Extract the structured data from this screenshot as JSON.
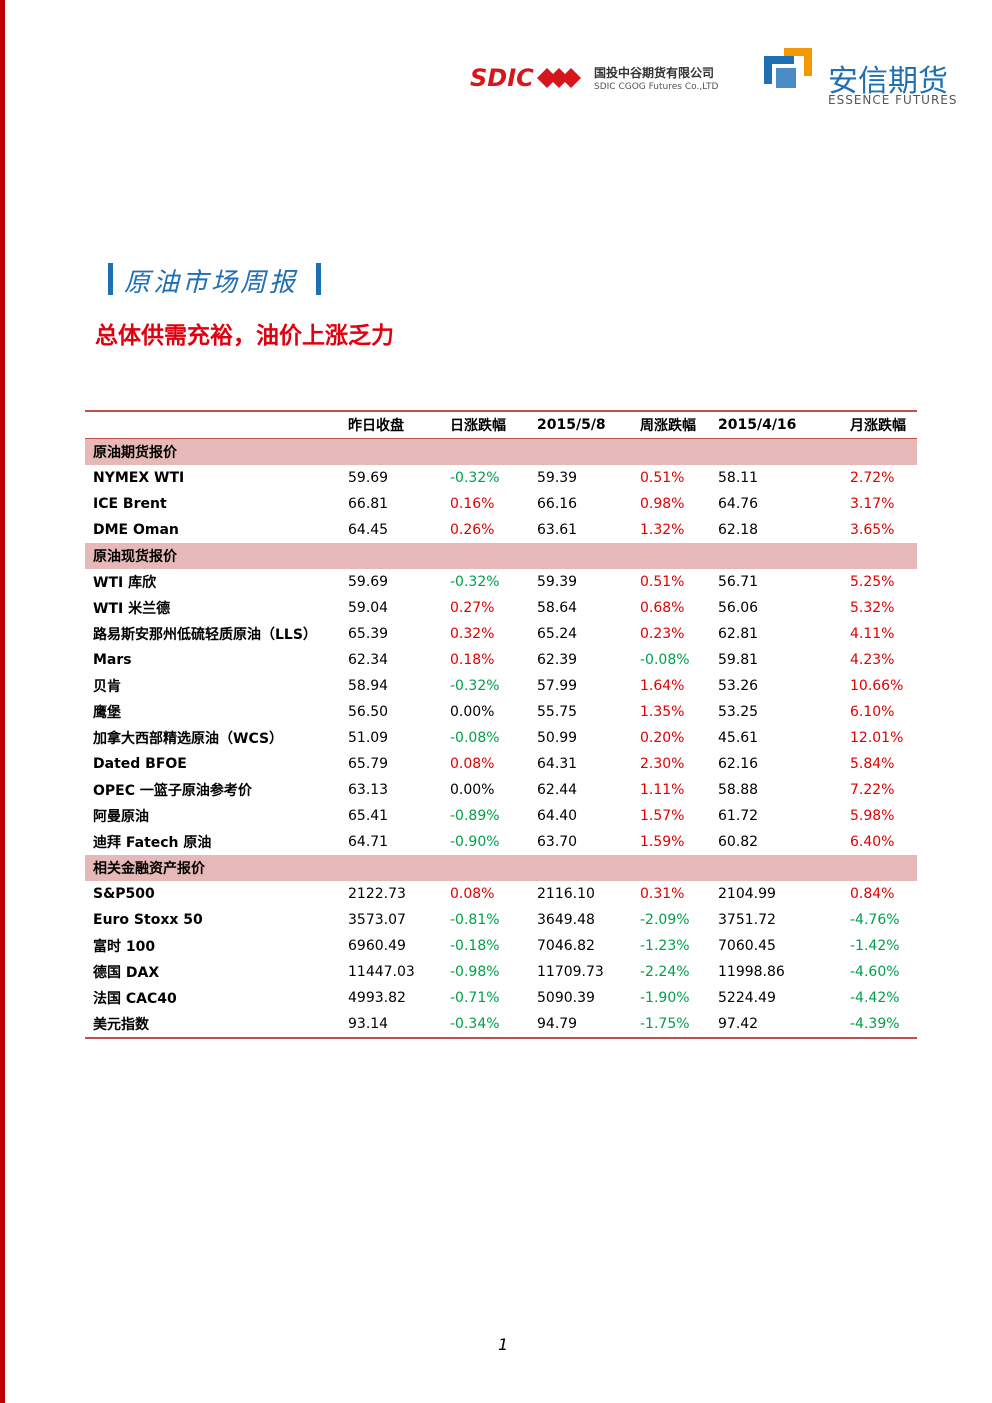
{
  "header": {
    "sdic_logo": "SDIC",
    "company_cn": "国投中谷期货有限公司",
    "company_en": "SDIC CGOG Futures Co.,LTD",
    "brand_cn": "安信期货",
    "brand_en": "ESSENCE FUTURES"
  },
  "title": "原油市场周报",
  "subtitle": "总体供需充裕，油价上涨乏力",
  "table": {
    "columns": [
      "昨日收盘",
      "日涨跌幅",
      "2015/5/8",
      "周涨跌幅",
      "2015/4/16",
      "月涨跌幅"
    ],
    "sections": [
      {
        "title": "原油期货报价",
        "rows": [
          [
            "NYMEX WTI",
            "59.69",
            "-0.32%",
            "59.39",
            "0.51%",
            "58.11",
            "2.72%"
          ],
          [
            "ICE Brent",
            "66.81",
            "0.16%",
            "66.16",
            "0.98%",
            "64.76",
            "3.17%"
          ],
          [
            "DME Oman",
            "64.45",
            "0.26%",
            "63.61",
            "1.32%",
            "62.18",
            "3.65%"
          ]
        ]
      },
      {
        "title": "原油现货报价",
        "rows": [
          [
            "WTI 库欣",
            "59.69",
            "-0.32%",
            "59.39",
            "0.51%",
            "56.71",
            "5.25%"
          ],
          [
            "WTI 米兰德",
            "59.04",
            "0.27%",
            "58.64",
            "0.68%",
            "56.06",
            "5.32%"
          ],
          [
            "路易斯安那州低硫轻质原油（LLS）",
            "65.39",
            "0.32%",
            "65.24",
            "0.23%",
            "62.81",
            "4.11%"
          ],
          [
            "Mars",
            "62.34",
            "0.18%",
            "62.39",
            "-0.08%",
            "59.81",
            "4.23%"
          ],
          [
            "贝肯",
            "58.94",
            "-0.32%",
            "57.99",
            "1.64%",
            "53.26",
            "10.66%"
          ],
          [
            "鹰堡",
            "56.50",
            "0.00%",
            "55.75",
            "1.35%",
            "53.25",
            "6.10%"
          ],
          [
            "加拿大西部精选原油（WCS）",
            "51.09",
            "-0.08%",
            "50.99",
            "0.20%",
            "45.61",
            "12.01%"
          ],
          [
            "Dated BFOE",
            "65.79",
            "0.08%",
            "64.31",
            "2.30%",
            "62.16",
            "5.84%"
          ],
          [
            "OPEC 一篮子原油参考价",
            "63.13",
            "0.00%",
            "62.44",
            "1.11%",
            "58.88",
            "7.22%"
          ],
          [
            "阿曼原油",
            "65.41",
            "-0.89%",
            "64.40",
            "1.57%",
            "61.72",
            "5.98%"
          ],
          [
            "迪拜 Fatech 原油",
            "64.71",
            "-0.90%",
            "63.70",
            "1.59%",
            "60.82",
            "6.40%"
          ]
        ]
      },
      {
        "title": "相关金融资产报价",
        "rows": [
          [
            "S&P500",
            "2122.73",
            "0.08%",
            "2116.10",
            "0.31%",
            "2104.99",
            "0.84%"
          ],
          [
            "Euro Stoxx 50",
            "3573.07",
            "-0.81%",
            "3649.48",
            "-2.09%",
            "3751.72",
            "-4.76%"
          ],
          [
            "富时 100",
            "6960.49",
            "-0.18%",
            "7046.82",
            "-1.23%",
            "7060.45",
            "-1.42%"
          ],
          [
            "德国 DAX",
            "11447.03",
            "-0.98%",
            "11709.73",
            "-2.24%",
            "11998.86",
            "-4.60%"
          ],
          [
            "法国 CAC40",
            "4993.82",
            "-0.71%",
            "5090.39",
            "-1.90%",
            "5224.49",
            "-4.42%"
          ],
          [
            "美元指数",
            "93.14",
            "-0.34%",
            "94.79",
            "-1.75%",
            "97.42",
            "-4.39%"
          ]
        ]
      }
    ]
  },
  "page_number": "1"
}
